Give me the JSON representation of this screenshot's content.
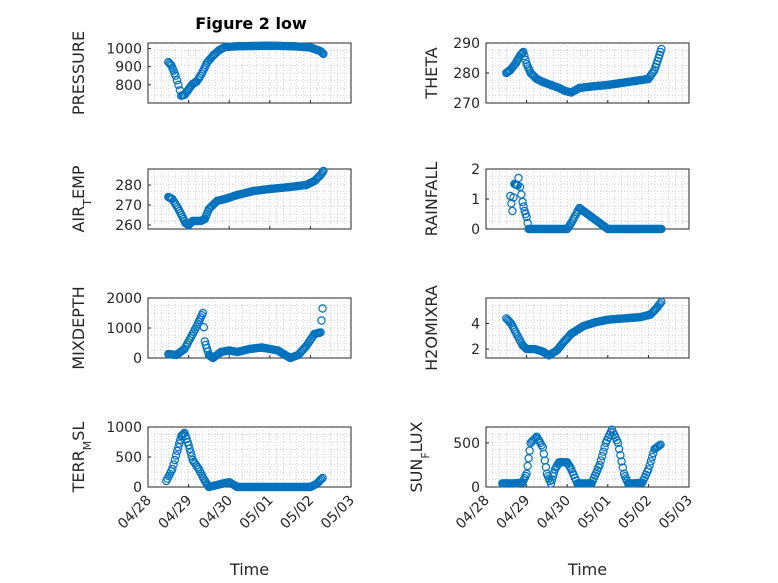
{
  "figure_title": "Figure 2 low",
  "x_label": "Time",
  "x_ticks": [
    "04/28",
    "04/29",
    "04/30",
    "05/01",
    "05/02",
    "05/03"
  ],
  "marker_color": "#0072bd",
  "chart_data": [
    {
      "type": "scatter",
      "title": "Figure 2 low",
      "ylabel": "PRESSURE",
      "ylabel_parts": [
        "PRESSURE"
      ],
      "grid": true,
      "minor_grid": true,
      "xlim": [
        0,
        5
      ],
      "ylim": [
        700,
        1030
      ],
      "yticks": [
        800,
        900,
        1000
      ],
      "key_points": [
        [
          0.5,
          925
        ],
        [
          0.58,
          905
        ],
        [
          0.68,
          850
        ],
        [
          0.75,
          800
        ],
        [
          0.82,
          740
        ],
        [
          0.9,
          745
        ],
        [
          1.0,
          775
        ],
        [
          1.1,
          805
        ],
        [
          1.2,
          818
        ],
        [
          1.32,
          860
        ],
        [
          1.45,
          920
        ],
        [
          1.6,
          960
        ],
        [
          1.75,
          990
        ],
        [
          1.9,
          1008
        ],
        [
          2.2,
          1012
        ],
        [
          3.0,
          1015
        ],
        [
          3.6,
          1012
        ],
        [
          4.0,
          1005
        ],
        [
          4.25,
          985
        ],
        [
          4.32,
          970
        ]
      ]
    },
    {
      "type": "scatter",
      "ylabel": "THETA",
      "ylabel_parts": [
        "THETA"
      ],
      "grid": true,
      "minor_grid": true,
      "xlim": [
        0,
        5
      ],
      "ylim": [
        270,
        290
      ],
      "yticks": [
        270,
        280,
        290
      ],
      "key_points": [
        [
          0.5,
          280
        ],
        [
          0.6,
          281
        ],
        [
          0.72,
          283
        ],
        [
          0.85,
          286
        ],
        [
          0.92,
          287
        ],
        [
          1.0,
          283
        ],
        [
          1.1,
          280
        ],
        [
          1.25,
          278
        ],
        [
          1.4,
          277
        ],
        [
          1.6,
          276
        ],
        [
          1.8,
          275
        ],
        [
          1.95,
          274
        ],
        [
          2.1,
          273.5
        ],
        [
          2.3,
          275
        ],
        [
          2.6,
          275.5
        ],
        [
          3.0,
          276
        ],
        [
          3.5,
          277
        ],
        [
          4.0,
          278
        ],
        [
          4.15,
          281
        ],
        [
          4.25,
          285
        ],
        [
          4.32,
          288
        ]
      ]
    },
    {
      "type": "scatter",
      "ylabel": "AIR_TEMP",
      "ylabel_parts": [
        "AIR",
        "T",
        "EMP"
      ],
      "grid": true,
      "minor_grid": true,
      "xlim": [
        0,
        5
      ],
      "ylim": [
        258,
        288
      ],
      "yticks": [
        260,
        270,
        280
      ],
      "key_points": [
        [
          0.5,
          274
        ],
        [
          0.6,
          273
        ],
        [
          0.75,
          268
        ],
        [
          0.85,
          264
        ],
        [
          0.92,
          261
        ],
        [
          1.0,
          260
        ],
        [
          1.1,
          262
        ],
        [
          1.3,
          262
        ],
        [
          1.4,
          263
        ],
        [
          1.5,
          268
        ],
        [
          1.7,
          272
        ],
        [
          1.9,
          273
        ],
        [
          2.2,
          275
        ],
        [
          2.6,
          277
        ],
        [
          3.0,
          278
        ],
        [
          3.5,
          279
        ],
        [
          3.9,
          280
        ],
        [
          4.1,
          282
        ],
        [
          4.25,
          285
        ],
        [
          4.32,
          287
        ]
      ]
    },
    {
      "type": "scatter",
      "ylabel": "RAINFALL",
      "ylabel_parts": [
        "RAINFALL"
      ],
      "grid": true,
      "minor_grid": true,
      "xlim": [
        0,
        5
      ],
      "ylim": [
        0,
        2
      ],
      "yticks": [
        0,
        1,
        2
      ],
      "key_points": [
        [
          0.6,
          1.1
        ],
        [
          0.65,
          0.6
        ],
        [
          0.7,
          1.5
        ],
        [
          0.78,
          1.45
        ],
        [
          0.8,
          1.7
        ],
        [
          0.84,
          1.4
        ],
        [
          0.9,
          0.9
        ],
        [
          0.95,
          0.6
        ],
        [
          1.0,
          0.4
        ],
        [
          1.05,
          0.0
        ],
        [
          2.0,
          0.0
        ],
        [
          2.1,
          0.2
        ],
        [
          2.3,
          0.7
        ],
        [
          3.0,
          0.0
        ],
        [
          4.32,
          0.0
        ]
      ]
    },
    {
      "type": "scatter",
      "ylabel": "MIXDEPTH",
      "ylabel_parts": [
        "MIXDEPTH"
      ],
      "grid": true,
      "minor_grid": true,
      "xlim": [
        0,
        5
      ],
      "ylim": [
        0,
        2000
      ],
      "yticks": [
        0,
        1000,
        2000
      ],
      "key_points": [
        [
          0.5,
          130
        ],
        [
          0.7,
          100
        ],
        [
          0.9,
          300
        ],
        [
          1.1,
          800
        ],
        [
          1.25,
          1200
        ],
        [
          1.35,
          1500
        ],
        [
          1.4,
          550
        ],
        [
          1.5,
          100
        ],
        [
          1.6,
          0
        ],
        [
          1.8,
          200
        ],
        [
          2.0,
          250
        ],
        [
          2.2,
          200
        ],
        [
          2.5,
          300
        ],
        [
          2.8,
          350
        ],
        [
          3.0,
          300
        ],
        [
          3.2,
          250
        ],
        [
          3.5,
          0
        ],
        [
          3.7,
          100
        ],
        [
          3.9,
          400
        ],
        [
          4.1,
          800
        ],
        [
          4.25,
          850
        ],
        [
          4.3,
          1650
        ]
      ]
    },
    {
      "type": "scatter",
      "ylabel": "H2OMIXRA",
      "ylabel_parts": [
        "H2OMIXRA"
      ],
      "grid": true,
      "minor_grid": true,
      "xlim": [
        0,
        5
      ],
      "ylim": [
        1.3,
        6
      ],
      "yticks": [
        2,
        4
      ],
      "key_points": [
        [
          0.5,
          4.4
        ],
        [
          0.62,
          4.0
        ],
        [
          0.75,
          3.2
        ],
        [
          0.9,
          2.3
        ],
        [
          1.0,
          2.0
        ],
        [
          1.2,
          2.0
        ],
        [
          1.4,
          1.8
        ],
        [
          1.55,
          1.5
        ],
        [
          1.75,
          1.9
        ],
        [
          1.9,
          2.5
        ],
        [
          2.1,
          3.2
        ],
        [
          2.4,
          3.8
        ],
        [
          2.7,
          4.1
        ],
        [
          3.0,
          4.3
        ],
        [
          3.4,
          4.4
        ],
        [
          3.8,
          4.5
        ],
        [
          4.05,
          4.7
        ],
        [
          4.2,
          5.2
        ],
        [
          4.32,
          5.7
        ]
      ]
    },
    {
      "type": "scatter",
      "ylabel": "TERR_MSL",
      "ylabel_parts": [
        "TERR",
        "M",
        "SL"
      ],
      "grid": true,
      "minor_grid": true,
      "xlim": [
        0,
        5
      ],
      "ylim": [
        0,
        1000
      ],
      "yticks": [
        0,
        500,
        1000
      ],
      "key_points": [
        [
          0.45,
          100
        ],
        [
          0.6,
          300
        ],
        [
          0.72,
          600
        ],
        [
          0.82,
          850
        ],
        [
          0.9,
          900
        ],
        [
          1.0,
          700
        ],
        [
          1.1,
          450
        ],
        [
          1.25,
          300
        ],
        [
          1.4,
          100
        ],
        [
          1.5,
          0
        ],
        [
          1.8,
          50
        ],
        [
          2.0,
          80
        ],
        [
          2.2,
          0
        ],
        [
          4.0,
          0
        ],
        [
          4.15,
          50
        ],
        [
          4.3,
          150
        ]
      ]
    },
    {
      "type": "scatter",
      "ylabel": "SUN_FLUX",
      "ylabel_parts": [
        "SUN",
        "F",
        "LUX"
      ],
      "grid": true,
      "minor_grid": true,
      "xlim": [
        0,
        5
      ],
      "ylim": [
        0,
        680
      ],
      "yticks": [
        0,
        500
      ],
      "key_points": [
        [
          0.4,
          40
        ],
        [
          0.7,
          40
        ],
        [
          0.9,
          50
        ],
        [
          1.0,
          150
        ],
        [
          1.1,
          500
        ],
        [
          1.25,
          570
        ],
        [
          1.4,
          450
        ],
        [
          1.5,
          150
        ],
        [
          1.6,
          40
        ],
        [
          1.7,
          200
        ],
        [
          1.8,
          280
        ],
        [
          2.0,
          280
        ],
        [
          2.1,
          200
        ],
        [
          2.25,
          40
        ],
        [
          2.6,
          40
        ],
        [
          2.8,
          250
        ],
        [
          2.95,
          500
        ],
        [
          3.1,
          650
        ],
        [
          3.25,
          500
        ],
        [
          3.4,
          150
        ],
        [
          3.5,
          40
        ],
        [
          3.65,
          40
        ],
        [
          3.85,
          50
        ],
        [
          4.0,
          200
        ],
        [
          4.15,
          430
        ],
        [
          4.3,
          480
        ]
      ]
    }
  ]
}
